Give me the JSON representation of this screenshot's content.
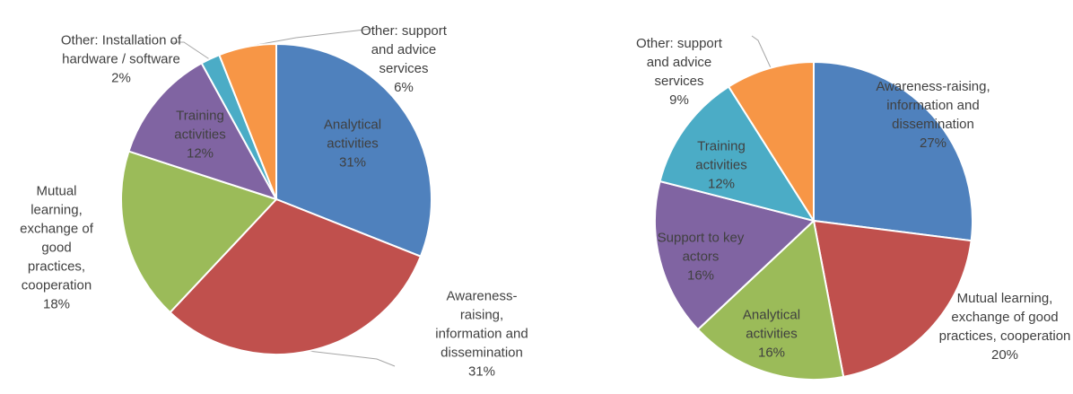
{
  "chart_data": [
    {
      "type": "pie",
      "categories": [
        "Analytical activities",
        "Awareness-raising, information and dissemination",
        "Mutual learning, exchange of good practices, cooperation",
        "Training activities",
        "Other: Installation of hardware / software",
        "Other: support and advice services"
      ],
      "values": [
        31,
        31,
        18,
        12,
        2,
        6
      ],
      "value_labels": [
        "31%",
        "31%",
        "18%",
        "12%",
        "2%",
        "6%"
      ],
      "colors": [
        "#4f81bd",
        "#c0504d",
        "#9bbb59",
        "#8064a2",
        "#4bacc6",
        "#f79646"
      ]
    },
    {
      "type": "pie",
      "categories": [
        "Awareness-raising, information and dissemination",
        "Mutual learning, exchange of good practices, cooperation",
        "Analytical activities",
        "Support to key actors",
        "Training activities",
        "Other: support and advice services"
      ],
      "values": [
        27,
        20,
        16,
        16,
        12,
        9
      ],
      "value_labels": [
        "27%",
        "20%",
        "16%",
        "16%",
        "12%",
        "9%"
      ],
      "colors": [
        "#4f81bd",
        "#c0504d",
        "#9bbb59",
        "#8064a2",
        "#4bacc6",
        "#f79646"
      ]
    }
  ]
}
